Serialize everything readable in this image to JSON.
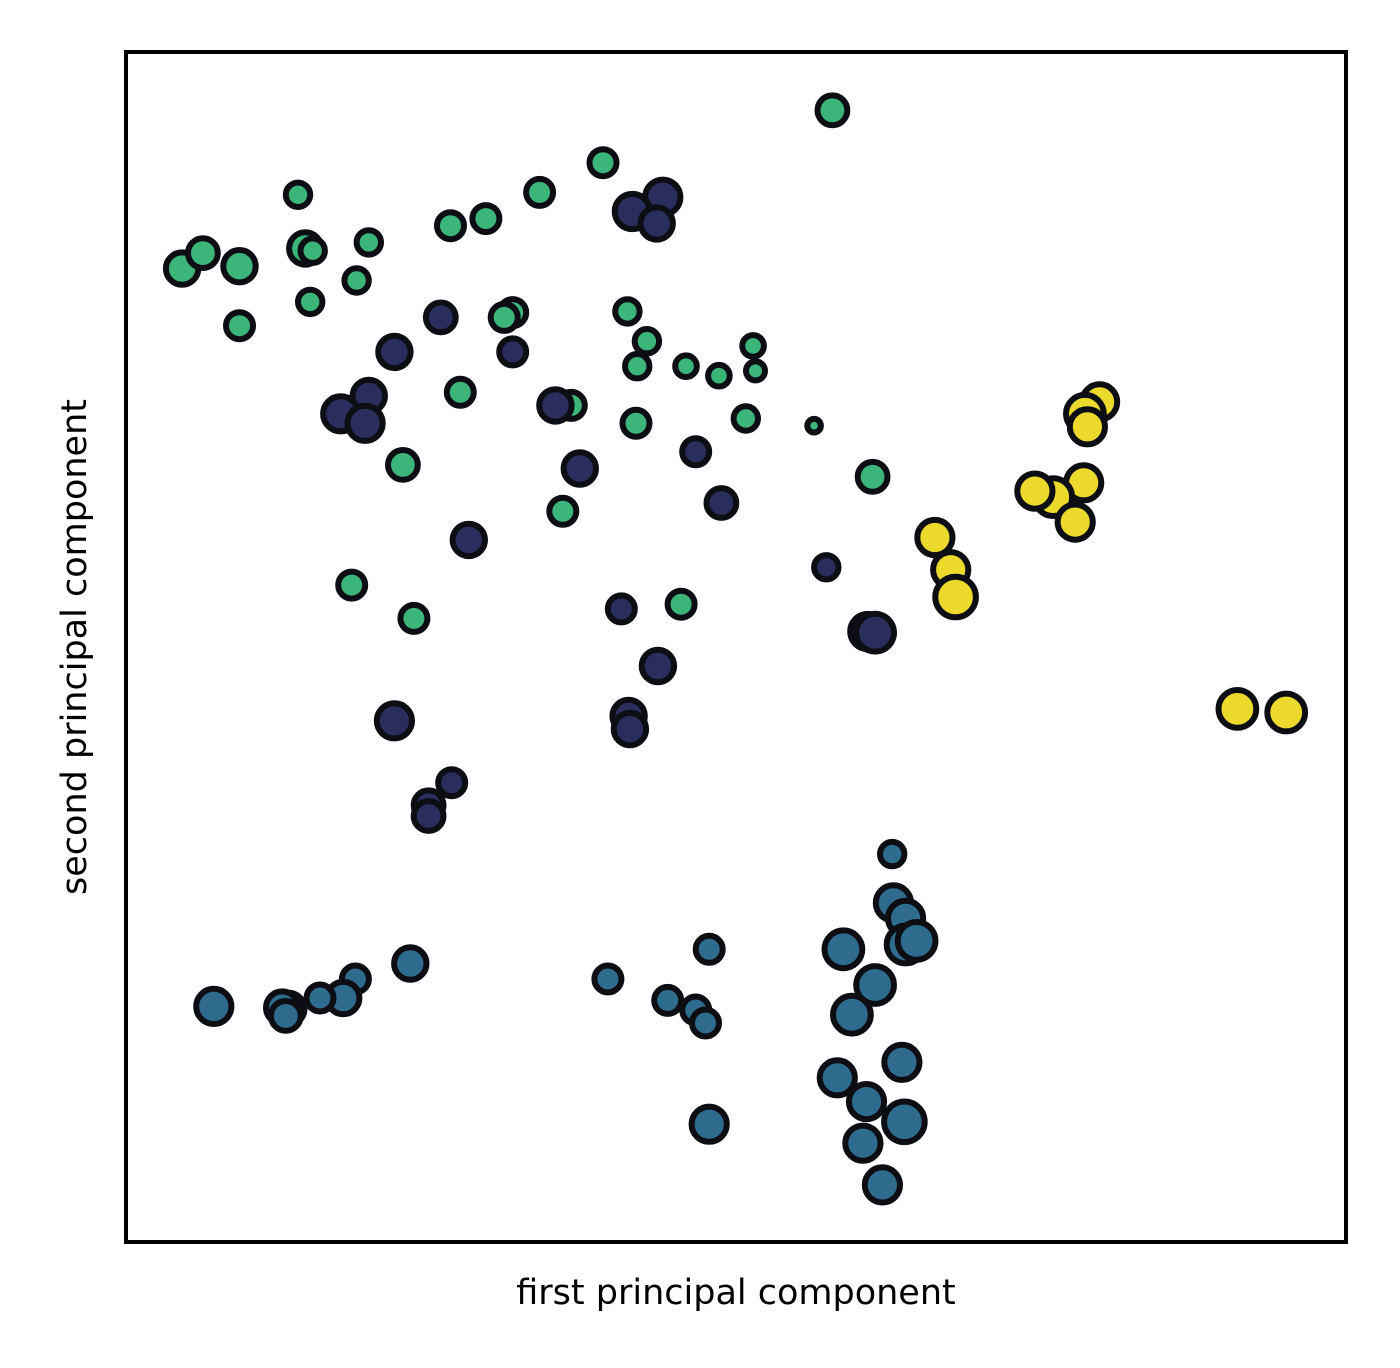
{
  "chart_data": {
    "type": "scatter",
    "title": "",
    "xlabel": "first principal component",
    "ylabel": "second principal component",
    "xlim": [
      0,
      100
    ],
    "ylim": [
      0,
      100
    ],
    "xticks": false,
    "yticks": false,
    "grid": false,
    "legend": "none",
    "cluster_colors": {
      "teal": "#3bb57a",
      "navy": "#2b2d5c",
      "blue": "#2f6b8c",
      "yellow": "#ebd92c"
    },
    "series": [
      {
        "cluster": "teal",
        "points": [
          {
            "x": 57.9,
            "y": 95.1,
            "s": 11
          },
          {
            "x": 33.9,
            "y": 88.2,
            "s": 10
          },
          {
            "x": 26.6,
            "y": 85.4,
            "s": 10
          },
          {
            "x": 29.5,
            "y": 86.0,
            "s": 10
          },
          {
            "x": 31.7,
            "y": 78.1,
            "s": 10
          },
          {
            "x": 39.1,
            "y": 90.7,
            "s": 10
          },
          {
            "x": 31.0,
            "y": 77.7,
            "s": 10
          },
          {
            "x": 14.7,
            "y": 83.5,
            "s": 12
          },
          {
            "x": 9.3,
            "y": 82.0,
            "s": 12
          },
          {
            "x": 4.6,
            "y": 81.8,
            "s": 12
          },
          {
            "x": 6.3,
            "y": 83.1,
            "s": 11
          },
          {
            "x": 14.1,
            "y": 88.0,
            "s": 9
          },
          {
            "x": 15.3,
            "y": 83.3,
            "s": 9
          },
          {
            "x": 19.9,
            "y": 84.0,
            "s": 9
          },
          {
            "x": 18.9,
            "y": 80.8,
            "s": 9
          },
          {
            "x": 15.1,
            "y": 79.0,
            "s": 9
          },
          {
            "x": 9.3,
            "y": 77.0,
            "s": 10
          },
          {
            "x": 41.1,
            "y": 78.2,
            "s": 9
          },
          {
            "x": 42.7,
            "y": 75.7,
            "s": 9
          },
          {
            "x": 41.9,
            "y": 73.6,
            "s": 9
          },
          {
            "x": 45.9,
            "y": 73.6,
            "s": 8
          },
          {
            "x": 48.6,
            "y": 72.8,
            "s": 8
          },
          {
            "x": 51.4,
            "y": 75.3,
            "s": 8
          },
          {
            "x": 51.6,
            "y": 73.2,
            "s": 7
          },
          {
            "x": 27.4,
            "y": 71.4,
            "s": 10
          },
          {
            "x": 36.5,
            "y": 70.3,
            "s": 10
          },
          {
            "x": 41.8,
            "y": 68.8,
            "s": 10
          },
          {
            "x": 50.8,
            "y": 69.2,
            "s": 9
          },
          {
            "x": 22.7,
            "y": 65.3,
            "s": 11
          },
          {
            "x": 35.8,
            "y": 61.4,
            "s": 10
          },
          {
            "x": 61.2,
            "y": 64.3,
            "s": 11
          },
          {
            "x": 18.5,
            "y": 55.2,
            "s": 10
          },
          {
            "x": 23.6,
            "y": 52.4,
            "s": 10
          },
          {
            "x": 45.5,
            "y": 53.6,
            "s": 10
          },
          {
            "x": 56.4,
            "y": 68.6,
            "s": 5
          }
        ]
      },
      {
        "cluster": "navy",
        "points": [
          {
            "x": 44.0,
            "y": 87.8,
            "s": 13
          },
          {
            "x": 41.5,
            "y": 86.6,
            "s": 13
          },
          {
            "x": 43.5,
            "y": 85.6,
            "s": 12
          },
          {
            "x": 25.8,
            "y": 77.7,
            "s": 11
          },
          {
            "x": 22.0,
            "y": 74.8,
            "s": 12
          },
          {
            "x": 31.7,
            "y": 74.8,
            "s": 10
          },
          {
            "x": 19.9,
            "y": 71.1,
            "s": 12
          },
          {
            "x": 17.6,
            "y": 69.6,
            "s": 13
          },
          {
            "x": 19.6,
            "y": 68.8,
            "s": 13
          },
          {
            "x": 35.2,
            "y": 70.3,
            "s": 12
          },
          {
            "x": 46.7,
            "y": 66.4,
            "s": 10
          },
          {
            "x": 37.2,
            "y": 65.0,
            "s": 12
          },
          {
            "x": 48.8,
            "y": 62.1,
            "s": 11
          },
          {
            "x": 28.1,
            "y": 59.0,
            "s": 12
          },
          {
            "x": 57.4,
            "y": 56.7,
            "s": 9
          },
          {
            "x": 40.6,
            "y": 53.2,
            "s": 10
          },
          {
            "x": 43.6,
            "y": 48.4,
            "s": 12
          },
          {
            "x": 60.8,
            "y": 51.3,
            "s": 13
          },
          {
            "x": 61.4,
            "y": 51.2,
            "s": 14
          },
          {
            "x": 22.0,
            "y": 43.8,
            "s": 13
          },
          {
            "x": 41.2,
            "y": 44.2,
            "s": 12
          },
          {
            "x": 41.3,
            "y": 43.1,
            "s": 12
          },
          {
            "x": 26.7,
            "y": 38.6,
            "s": 10
          },
          {
            "x": 24.8,
            "y": 36.7,
            "s": 11
          },
          {
            "x": 24.8,
            "y": 35.8,
            "s": 11
          }
        ]
      },
      {
        "cluster": "blue",
        "points": [
          {
            "x": 62.8,
            "y": 32.6,
            "s": 9
          },
          {
            "x": 62.9,
            "y": 28.5,
            "s": 13
          },
          {
            "x": 63.9,
            "y": 27.2,
            "s": 13
          },
          {
            "x": 63.9,
            "y": 25.0,
            "s": 14
          },
          {
            "x": 64.8,
            "y": 25.3,
            "s": 14
          },
          {
            "x": 58.8,
            "y": 24.6,
            "s": 14
          },
          {
            "x": 61.4,
            "y": 21.6,
            "s": 14
          },
          {
            "x": 59.5,
            "y": 19.1,
            "s": 14
          },
          {
            "x": 63.6,
            "y": 15.1,
            "s": 13
          },
          {
            "x": 58.3,
            "y": 13.8,
            "s": 13
          },
          {
            "x": 60.7,
            "y": 11.8,
            "s": 13
          },
          {
            "x": 63.8,
            "y": 10.1,
            "s": 15
          },
          {
            "x": 60.4,
            "y": 8.3,
            "s": 13
          },
          {
            "x": 62.0,
            "y": 4.8,
            "s": 13
          },
          {
            "x": 47.8,
            "y": 24.6,
            "s": 10
          },
          {
            "x": 39.5,
            "y": 22.1,
            "s": 10
          },
          {
            "x": 44.4,
            "y": 20.3,
            "s": 10
          },
          {
            "x": 46.7,
            "y": 19.5,
            "s": 10
          },
          {
            "x": 47.5,
            "y": 18.4,
            "s": 10
          },
          {
            "x": 47.8,
            "y": 9.9,
            "s": 13
          },
          {
            "x": 23.3,
            "y": 23.4,
            "s": 12
          },
          {
            "x": 18.8,
            "y": 22.1,
            "s": 10
          },
          {
            "x": 17.8,
            "y": 20.5,
            "s": 12
          },
          {
            "x": 15.9,
            "y": 20.5,
            "s": 10
          },
          {
            "x": 13.3,
            "y": 19.6,
            "s": 12
          },
          {
            "x": 12.8,
            "y": 19.7,
            "s": 12
          },
          {
            "x": 13.1,
            "y": 19.0,
            "s": 11
          },
          {
            "x": 7.2,
            "y": 19.8,
            "s": 13
          }
        ]
      },
      {
        "cluster": "yellow",
        "points": [
          {
            "x": 78.5,
            "y": 63.8,
            "s": 13
          },
          {
            "x": 76.0,
            "y": 62.6,
            "s": 14
          },
          {
            "x": 74.5,
            "y": 63.1,
            "s": 13
          },
          {
            "x": 77.8,
            "y": 60.5,
            "s": 13
          },
          {
            "x": 66.3,
            "y": 59.2,
            "s": 13
          },
          {
            "x": 67.6,
            "y": 56.5,
            "s": 13
          },
          {
            "x": 68.0,
            "y": 54.2,
            "s": 15
          },
          {
            "x": 79.8,
            "y": 70.6,
            "s": 13
          },
          {
            "x": 78.6,
            "y": 69.6,
            "s": 14
          },
          {
            "x": 78.8,
            "y": 68.5,
            "s": 13
          },
          {
            "x": 91.1,
            "y": 44.8,
            "s": 14
          },
          {
            "x": 95.1,
            "y": 44.5,
            "s": 14
          }
        ]
      }
    ]
  }
}
